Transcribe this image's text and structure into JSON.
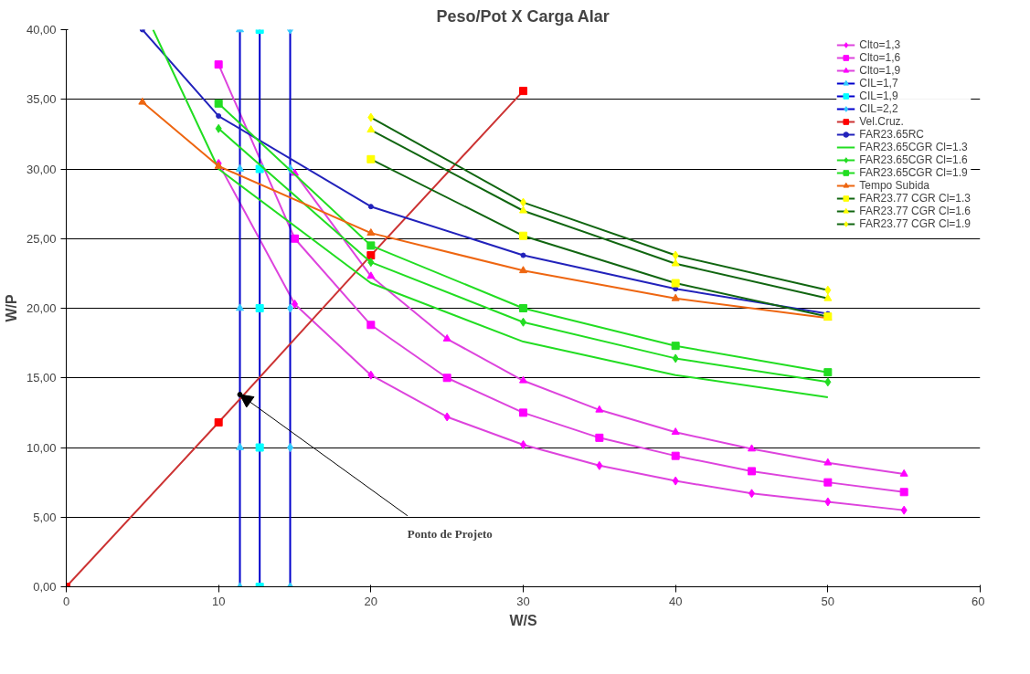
{
  "chart_data": {
    "type": "line",
    "title": "Peso/Pot X Carga Alar",
    "xlabel": "W/S",
    "ylabel": "W/P",
    "xlim": [
      0,
      60
    ],
    "ylim": [
      0,
      40
    ],
    "xticks": [
      0,
      10,
      20,
      30,
      40,
      50,
      60
    ],
    "yticks": [
      {
        "value": 0,
        "label": "0,00"
      },
      {
        "value": 5,
        "label": "5,00"
      },
      {
        "value": 10,
        "label": "10,00"
      },
      {
        "value": 15,
        "label": "15,00"
      },
      {
        "value": 20,
        "label": "20,00"
      },
      {
        "value": 25,
        "label": "25,00"
      },
      {
        "value": 30,
        "label": "30,00"
      },
      {
        "value": 35,
        "label": "35,00"
      },
      {
        "value": 40,
        "label": "40,00"
      }
    ],
    "grid": "y",
    "legend": "top right",
    "line_style": "solid",
    "series": [
      {
        "name": "Clto=1,3",
        "color": "#dd44dd",
        "colors": [
          "#ff00ff",
          "#ff00ff",
          "#ff00ff",
          "#ff00ff",
          "#ff00ff",
          "#ff00ff",
          "#ff00ff",
          "#ff00ff",
          "#ff00ff",
          "#ff00ff"
        ],
        "marker": "diamond",
        "x": [
          10,
          15,
          20,
          25,
          30,
          35,
          40,
          45,
          50,
          55
        ],
        "values": [
          30.4,
          20.3,
          15.2,
          12.2,
          10.2,
          8.7,
          7.6,
          6.7,
          6.1,
          5.5
        ]
      },
      {
        "name": "Clto=1,6",
        "color": "#dd44dd",
        "colors": [
          "#ff00ff",
          "#ff00ff",
          "#ff00ff",
          "#ff00ff",
          "#ff00ff",
          "#ff00ff",
          "#ff00ff",
          "#ff00ff",
          "#ff00ff",
          "#ff00ff"
        ],
        "marker": "square",
        "x": [
          10,
          15,
          20,
          25,
          30,
          35,
          40,
          45,
          50,
          55
        ],
        "values": [
          37.5,
          25.0,
          18.8,
          15.0,
          12.5,
          10.7,
          9.4,
          8.3,
          7.5,
          6.8
        ]
      },
      {
        "name": "Clto=1,9",
        "color": "#dd44dd",
        "colors": [
          "#ff00ff",
          "#ff00ff",
          "#ff00ff",
          "#ff00ff",
          "#ff00ff",
          "#ff00ff",
          "#ff00ff",
          "#ff00ff",
          "#ff00ff"
        ],
        "marker": "triangle",
        "x": [
          15,
          20,
          25,
          30,
          35,
          40,
          45,
          50,
          55
        ],
        "values": [
          29.7,
          22.3,
          17.8,
          14.8,
          12.7,
          11.1,
          9.9,
          8.9,
          8.1
        ]
      },
      {
        "name": "CIL=1,7",
        "color": "#0000cc",
        "colors": [
          "#33ccff",
          "#33ccff",
          "#33ccff",
          "#33ccff",
          "#33ccff"
        ],
        "marker": "triangle",
        "x": [
          11.4,
          11.4,
          11.4,
          11.4,
          11.4
        ],
        "values": [
          0,
          10,
          20,
          30,
          40
        ]
      },
      {
        "name": "CIL=1,9",
        "color": "#0000cc",
        "colors": [
          "#00ffff",
          "#00ffff",
          "#00ffff",
          "#00ffff",
          "#00ffff"
        ],
        "marker": "square",
        "x": [
          12.7,
          12.7,
          12.7,
          12.7,
          12.7
        ],
        "values": [
          0,
          10,
          20,
          30,
          40
        ]
      },
      {
        "name": "CIL=2,2",
        "color": "#0000cc",
        "colors": [
          "#33ccff",
          "#33ccff",
          "#33ccff",
          "#33ccff",
          "#33ccff"
        ],
        "marker": "diamond",
        "x": [
          14.7,
          14.7,
          14.7,
          14.7,
          14.7
        ],
        "values": [
          0,
          10,
          20,
          30,
          40
        ]
      },
      {
        "name": "Vel.Cruz.",
        "color": "#cc3333",
        "colors": [
          "#ff0000",
          "#ff0000",
          "#ff0000",
          "#ff0000"
        ],
        "marker": "square",
        "x": [
          0,
          10,
          20,
          30
        ],
        "values": [
          0,
          11.8,
          23.8,
          35.6
        ]
      },
      {
        "name": "FAR23.65RC",
        "color": "#2222bb",
        "marker": "circle",
        "x": [
          5,
          10,
          20,
          30,
          40,
          50
        ],
        "values": [
          40.0,
          33.8,
          27.3,
          23.8,
          21.4,
          19.6
        ]
      },
      {
        "name": "FAR23.65CGR Cl=1.3",
        "color": "#22dd22",
        "marker": "none",
        "x": [
          5.7,
          10,
          20,
          30,
          40,
          50
        ],
        "values": [
          40.0,
          30.0,
          21.8,
          17.6,
          15.2,
          13.6
        ]
      },
      {
        "name": "FAR23.65CGR Cl=1.6",
        "color": "#22dd22",
        "marker": "diamond",
        "x": [
          10,
          20,
          30,
          40,
          50
        ],
        "values": [
          32.9,
          23.3,
          19.0,
          16.4,
          14.7
        ]
      },
      {
        "name": "FAR23.65CGR Cl=1.9",
        "color": "#22dd22",
        "marker": "square",
        "x": [
          10,
          20,
          30,
          40,
          50
        ],
        "values": [
          34.7,
          24.5,
          20.0,
          17.3,
          15.4
        ]
      },
      {
        "name": "Tempo Subida",
        "color": "#ee6611",
        "marker": "triangle",
        "x": [
          5,
          10,
          20,
          30,
          40,
          50
        ],
        "values": [
          34.8,
          30.2,
          25.4,
          22.7,
          20.7,
          19.3
        ]
      },
      {
        "name": "FAR23.77 CGR Cl=1.3",
        "color": "#116611",
        "colors": [
          "#ffff00",
          "#ffff00",
          "#ffff00",
          "#ffff00"
        ],
        "marker": "square",
        "x": [
          20,
          30,
          40,
          50
        ],
        "values": [
          30.7,
          25.2,
          21.8,
          19.4
        ]
      },
      {
        "name": "FAR23.77 CGR Cl=1.6",
        "color": "#116611",
        "colors": [
          "#ffff00",
          "#ffff00",
          "#ffff00",
          "#ffff00"
        ],
        "marker": "triangle",
        "x": [
          20,
          30,
          40,
          50
        ],
        "values": [
          32.8,
          27.0,
          23.2,
          20.7
        ]
      },
      {
        "name": "FAR23.77 CGR Cl=1.9",
        "color": "#116611",
        "colors": [
          "#ffff00",
          "#ffff00",
          "#ffff00",
          "#ffff00"
        ],
        "marker": "diamond",
        "x": [
          20,
          30,
          40,
          50
        ],
        "values": [
          33.7,
          27.6,
          23.8,
          21.3
        ]
      },
      {
        "type": "scatter",
        "color": "#000000",
        "marker": "circle",
        "x": [
          11.4
        ],
        "values": [
          13.8
        ]
      }
    ],
    "annotations": [
      {
        "text": "Ponto de Projeto",
        "x": 11.4,
        "y": 13.8
      }
    ]
  }
}
